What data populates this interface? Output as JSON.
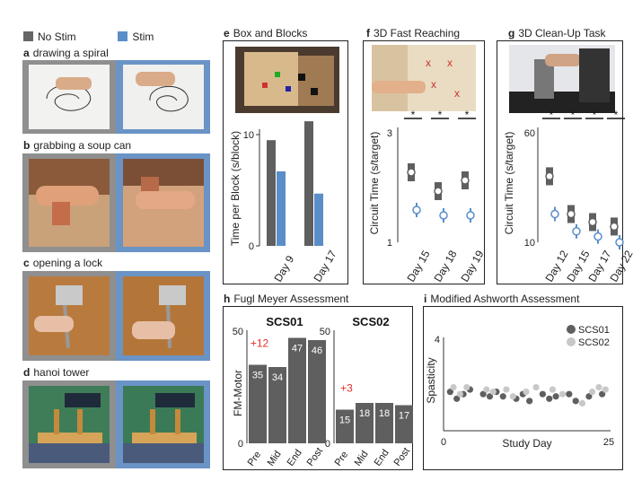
{
  "legend": [
    {
      "label": "No Stim",
      "color": "#666666"
    },
    {
      "label": "Stim",
      "color": "#5b8ec9"
    }
  ],
  "colors": {
    "nostim": "#5f5f5f",
    "stim": "#5b8ec9",
    "delta": "#e0302a",
    "light": "#c8c8c8",
    "panel_border": "#6a93c6"
  },
  "panels": {
    "a": {
      "letter": "a",
      "title": "drawing a spiral"
    },
    "b": {
      "letter": "b",
      "title": "grabbing a soup can"
    },
    "c": {
      "letter": "c",
      "title": "opening a lock"
    },
    "d": {
      "letter": "d",
      "title": "hanoi tower"
    },
    "e": {
      "letter": "e",
      "title": "Box and Blocks"
    },
    "f": {
      "letter": "f",
      "title": "3D Fast Reaching"
    },
    "g": {
      "letter": "g",
      "title": "3D Clean-Up Task"
    },
    "h": {
      "letter": "h",
      "title": "Fugl Meyer Assessment"
    },
    "i": {
      "letter": "i",
      "title": "Modified Ashworth Assessment"
    }
  },
  "chart_data": [
    {
      "id": "e",
      "type": "bar",
      "categories": [
        "Day 9",
        "Day 17"
      ],
      "series": [
        {
          "name": "No Stim",
          "values": [
            9.5,
            11.2
          ]
        },
        {
          "name": "Stim",
          "values": [
            6.7,
            4.7
          ]
        }
      ],
      "ylabel": "Time per Block (s/block)",
      "ylim": [
        0,
        11.5
      ],
      "yticks": [
        "0",
        "10"
      ]
    },
    {
      "id": "f",
      "type": "box",
      "categories": [
        "Day 15",
        "Day 18",
        "Day 19"
      ],
      "series": [
        {
          "name": "No Stim",
          "medians": [
            2.3,
            1.95,
            2.15
          ]
        },
        {
          "name": "Stim",
          "medians": [
            1.6,
            1.5,
            1.5
          ]
        }
      ],
      "ylabel": "Circuit Time (s/target)",
      "ylim": [
        1,
        3
      ],
      "yticks": [
        "1",
        "3"
      ],
      "significance": [
        "*",
        "*",
        "*"
      ]
    },
    {
      "id": "g",
      "type": "box",
      "categories": [
        "Day 12",
        "Day 15",
        "Day 17",
        "Day 22"
      ],
      "series": [
        {
          "name": "No Stim",
          "medians": [
            30,
            16,
            14,
            13
          ]
        },
        {
          "name": "Stim",
          "medians": [
            16,
            12,
            11,
            10
          ]
        }
      ],
      "ylabel": "Circuit Time (s/target)",
      "ylim": [
        10,
        60
      ],
      "yticks": [
        "10",
        "60"
      ],
      "significance": [
        "*",
        "*",
        "*",
        "*"
      ]
    },
    {
      "id": "h",
      "type": "bar",
      "ylabel": "FM-Motor",
      "ylim": [
        0,
        50
      ],
      "yticks": [
        "0",
        "50"
      ],
      "subplots": [
        {
          "title": "SCS01",
          "categories": [
            "Pre",
            "Mid",
            "End",
            "Post"
          ],
          "values": [
            35,
            34,
            47,
            46
          ],
          "delta": "+12"
        },
        {
          "title": "SCS02",
          "categories": [
            "Pre",
            "Mid",
            "End",
            "Post"
          ],
          "values": [
            15,
            18,
            18,
            17
          ],
          "delta": "+3"
        }
      ]
    },
    {
      "id": "i",
      "type": "scatter",
      "xlabel": "Study Day",
      "ylabel": "Spasticity",
      "xlim": [
        0,
        25
      ],
      "ylim": [
        0,
        4
      ],
      "xticks": [
        "0",
        "25"
      ],
      "yticks": [
        "0",
        "4"
      ],
      "series": [
        {
          "name": "SCS01",
          "points": [
            [
              1,
              1.7
            ],
            [
              2,
              1.4
            ],
            [
              3,
              1.6
            ],
            [
              4,
              1.8
            ],
            [
              6,
              1.6
            ],
            [
              7,
              1.5
            ],
            [
              8,
              1.7
            ],
            [
              9,
              1.5
            ],
            [
              11,
              1.4
            ],
            [
              12,
              1.6
            ],
            [
              13,
              1.3
            ],
            [
              15,
              1.6
            ],
            [
              16,
              1.4
            ],
            [
              17,
              1.5
            ],
            [
              19,
              1.6
            ],
            [
              20,
              1.3
            ],
            [
              22,
              1.5
            ],
            [
              24,
              1.6
            ]
          ]
        },
        {
          "name": "SCS02",
          "points": [
            [
              1.5,
              1.9
            ],
            [
              2.5,
              1.6
            ],
            [
              3.5,
              1.9
            ],
            [
              6.5,
              1.8
            ],
            [
              7.5,
              1.7
            ],
            [
              9.5,
              1.8
            ],
            [
              10.5,
              1.5
            ],
            [
              12.5,
              1.7
            ],
            [
              14,
              1.9
            ],
            [
              16.5,
              1.8
            ],
            [
              18,
              1.6
            ],
            [
              21,
              1.2
            ],
            [
              22.5,
              1.7
            ],
            [
              23.5,
              1.9
            ],
            [
              24.5,
              1.8
            ]
          ]
        }
      ]
    }
  ]
}
